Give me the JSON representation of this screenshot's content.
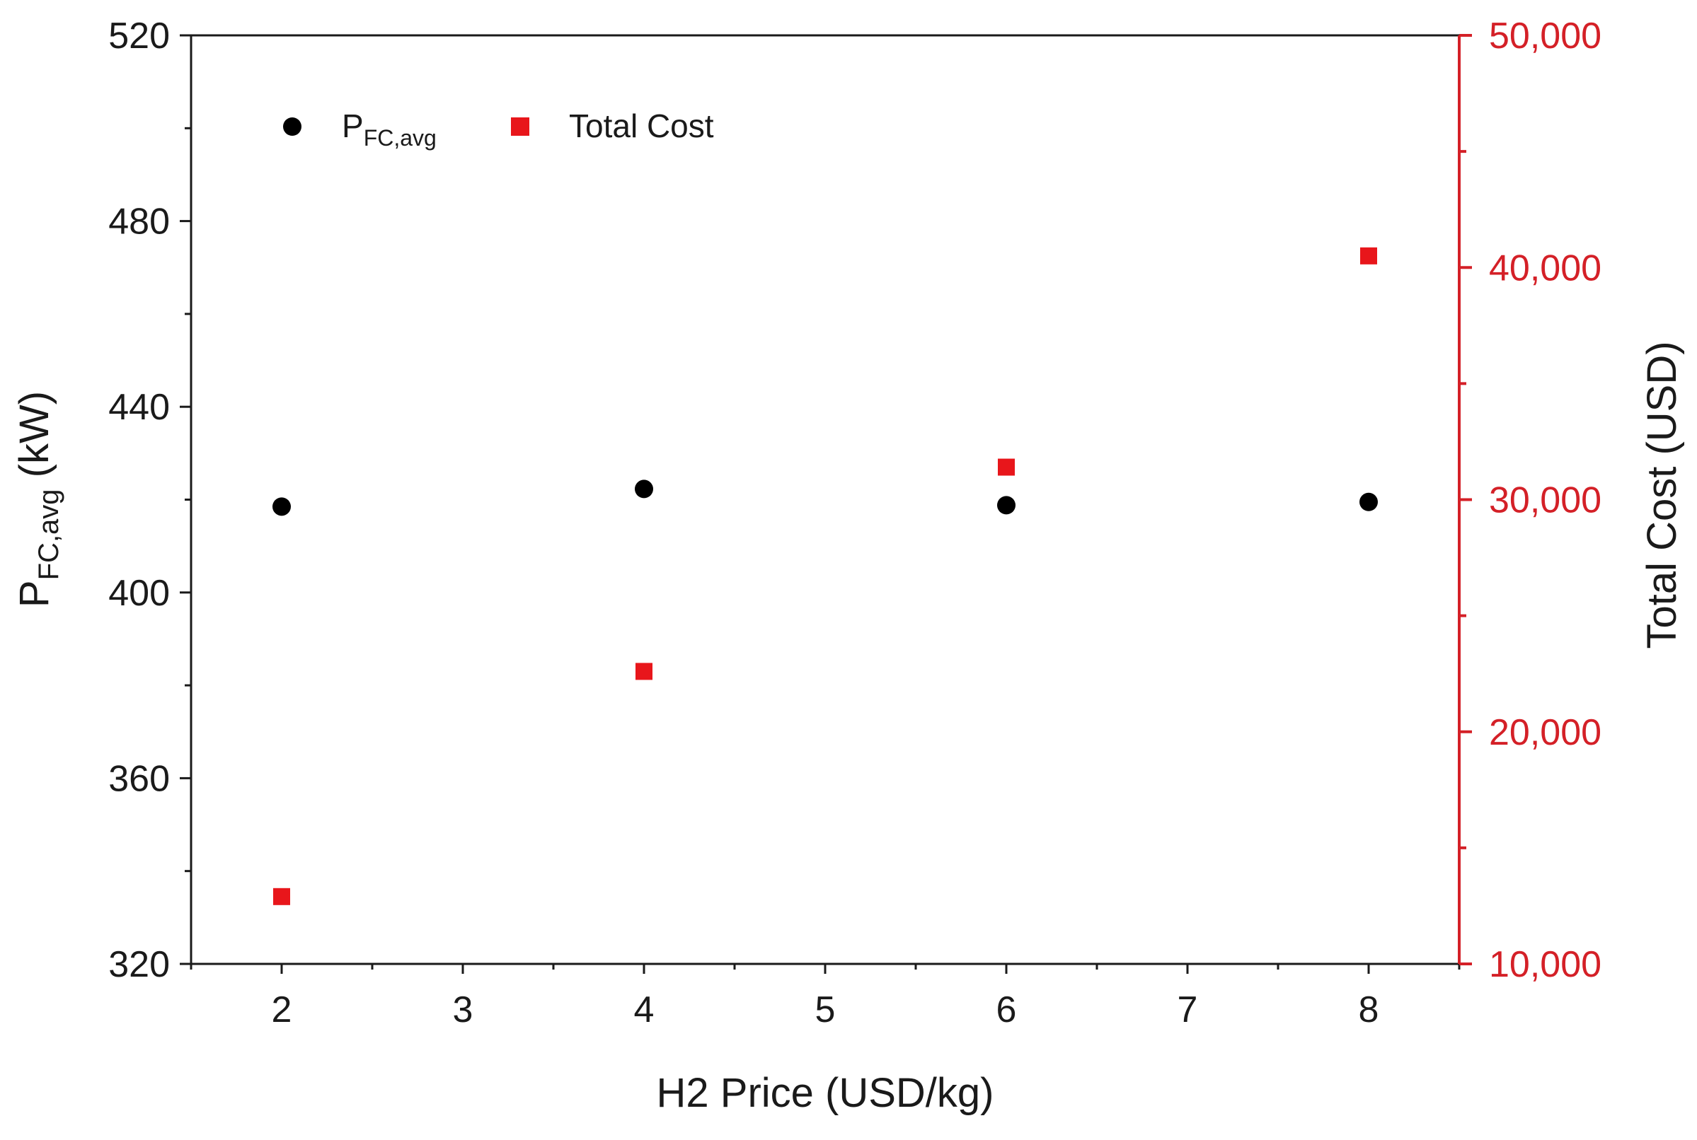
{
  "chart_data": {
    "type": "scatter",
    "title": "",
    "x": [
      2,
      4,
      6,
      8
    ],
    "xlabel": "H2 Price (USD/kg)",
    "xlim": [
      1.5,
      8.5
    ],
    "xticks": [
      2,
      3,
      4,
      5,
      6,
      7,
      8
    ],
    "y_left": {
      "label_main": "P",
      "label_sub": "FC,avg",
      "label_unit": " (kW)",
      "lim": [
        320,
        520
      ],
      "ticks": [
        320,
        360,
        400,
        440,
        480,
        520
      ],
      "color": "#1a1a1a"
    },
    "y_right": {
      "label": "Total Cost (USD)",
      "lim": [
        10000,
        50000
      ],
      "ticks": [
        10000,
        20000,
        30000,
        40000,
        50000
      ],
      "tick_labels": [
        "10,000",
        "20,000",
        "30,000",
        "40,000",
        "50,000"
      ],
      "color": "#d42027"
    },
    "series": [
      {
        "name_main": "P",
        "name_sub": "FC,avg",
        "axis": "left",
        "marker": "circle",
        "color": "#000000",
        "values": [
          418.5,
          422.3,
          418.8,
          419.5
        ]
      },
      {
        "name": "Total Cost",
        "axis": "right",
        "marker": "square",
        "color": "#e8161b",
        "values": [
          12900,
          22600,
          31400,
          40500
        ]
      }
    ],
    "legend_position": "top-left",
    "grid": false
  }
}
